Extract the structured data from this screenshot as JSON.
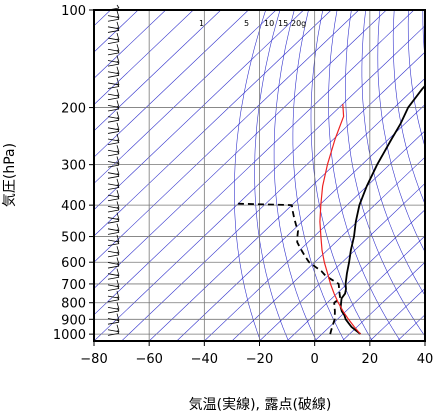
{
  "chart_data": {
    "type": "line",
    "title": "",
    "xlabel": "気温(実線), 露点(破線)",
    "ylabel": "気圧(hPa)",
    "x_ticks": [
      -80,
      -60,
      -40,
      -20,
      0,
      20,
      40
    ],
    "y_ticks": [
      100,
      200,
      300,
      400,
      500,
      600,
      700,
      800,
      900,
      1000
    ],
    "xlim": [
      -80,
      40
    ],
    "ylim": [
      1050,
      100
    ],
    "y_scale": "log",
    "skew": true,
    "grid": true,
    "mixing_ratio_labels": [
      "1",
      "5",
      "10",
      "15",
      "20g"
    ],
    "series": [
      {
        "kind": "temperature",
        "color": "#000000",
        "style": "solid",
        "points": [
          [
            1000,
            14
          ],
          [
            975,
            11
          ],
          [
            950,
            8
          ],
          [
            925,
            5.5
          ],
          [
            900,
            3
          ],
          [
            875,
            1
          ],
          [
            850,
            -1.5
          ],
          [
            825,
            -3.5
          ],
          [
            800,
            -5
          ],
          [
            775,
            -6.5
          ],
          [
            750,
            -7
          ],
          [
            725,
            -8.5
          ],
          [
            700,
            -10.5
          ],
          [
            650,
            -14
          ],
          [
            600,
            -17.5
          ],
          [
            550,
            -21.5
          ],
          [
            500,
            -25.5
          ],
          [
            450,
            -30.5
          ],
          [
            400,
            -35.5
          ],
          [
            350,
            -40
          ],
          [
            300,
            -44.5
          ],
          [
            250,
            -49
          ],
          [
            225,
            -51.5
          ],
          [
            200,
            -55
          ],
          [
            175,
            -57
          ],
          [
            150,
            -58
          ],
          [
            125,
            -56
          ],
          [
            100,
            -56
          ]
        ]
      },
      {
        "kind": "dewpoint",
        "color": "#000000",
        "style": "dashed",
        "points": [
          [
            1000,
            3
          ],
          [
            975,
            2
          ],
          [
            950,
            1
          ],
          [
            925,
            0
          ],
          [
            900,
            -1
          ],
          [
            850,
            -4
          ],
          [
            800,
            -7.5
          ],
          [
            775,
            -7
          ],
          [
            750,
            -9
          ],
          [
            725,
            -11
          ],
          [
            700,
            -13
          ],
          [
            680,
            -17
          ],
          [
            660,
            -21
          ],
          [
            640,
            -24
          ],
          [
            620,
            -28
          ],
          [
            600,
            -32
          ],
          [
            580,
            -35
          ],
          [
            560,
            -38
          ],
          [
            540,
            -41
          ],
          [
            520,
            -44
          ],
          [
            500,
            -46
          ],
          [
            480,
            -48
          ],
          [
            460,
            -51
          ],
          [
            440,
            -54
          ],
          [
            420,
            -57
          ],
          [
            400,
            -60
          ],
          [
            398,
            -70
          ],
          [
            396,
            -80
          ]
        ]
      },
      {
        "kind": "parcel",
        "color": "#ee2222",
        "style": "solid",
        "points": [
          [
            1000,
            14
          ],
          [
            950,
            9
          ],
          [
            900,
            4
          ],
          [
            850,
            -1
          ],
          [
            800,
            -6
          ],
          [
            750,
            -11
          ],
          [
            700,
            -16
          ],
          [
            650,
            -21
          ],
          [
            600,
            -26.5
          ],
          [
            550,
            -32
          ],
          [
            500,
            -37.5
          ],
          [
            450,
            -43.5
          ],
          [
            400,
            -49.5
          ],
          [
            350,
            -56
          ],
          [
            300,
            -62.5
          ],
          [
            250,
            -69.5
          ],
          [
            213,
            -75
          ],
          [
            195,
            -80
          ]
        ]
      }
    ]
  }
}
